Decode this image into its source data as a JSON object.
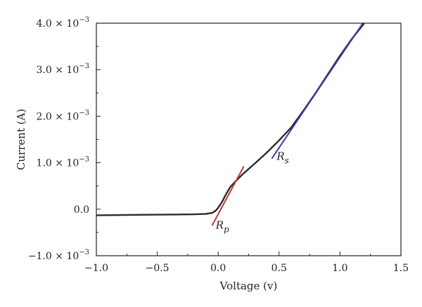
{
  "chart_data": {
    "type": "line",
    "xlabel": "Voltage (v)",
    "ylabel": "Current (A)",
    "xlim": [
      -1.0,
      1.5
    ],
    "ylim": [
      -0.001,
      0.004
    ],
    "x_ticks": [
      {
        "value": -1.0,
        "label": "−1.0"
      },
      {
        "value": -0.5,
        "label": "−0.5"
      },
      {
        "value": 0.0,
        "label": "0.0"
      },
      {
        "value": 0.5,
        "label": "0.5"
      },
      {
        "value": 1.0,
        "label": "1.0"
      },
      {
        "value": 1.5,
        "label": "1.5"
      }
    ],
    "y_ticks": [
      {
        "value": -0.001,
        "mantissa": "−1.0 × 10",
        "exponent": "−3"
      },
      {
        "value": 0.0,
        "mantissa": "0.0",
        "exponent": ""
      },
      {
        "value": 0.001,
        "mantissa": "1.0 × 10",
        "exponent": "−3"
      },
      {
        "value": 0.002,
        "mantissa": "2.0 × 10",
        "exponent": "−3"
      },
      {
        "value": 0.003,
        "mantissa": "3.0 × 10",
        "exponent": "−3"
      },
      {
        "value": 0.004,
        "mantissa": "4.0 × 10",
        "exponent": "−3"
      }
    ],
    "series": [
      {
        "color": "#2b2b2b",
        "x": [
          -1.0,
          -0.8,
          -0.6,
          -0.4,
          -0.2,
          -0.1,
          -0.05,
          -0.02,
          0.0,
          0.03,
          0.06,
          0.1,
          0.15,
          0.2,
          0.3,
          0.4,
          0.5,
          0.6,
          0.7,
          0.8,
          0.9,
          1.0,
          1.1,
          1.2
        ],
        "y": [
          -0.00013,
          -0.000125,
          -0.00012,
          -0.000115,
          -0.00011,
          -0.0001,
          -8e-05,
          -3e-05,
          3e-05,
          0.00015,
          0.0003,
          0.00048,
          0.00062,
          0.00075,
          0.00098,
          0.00122,
          0.00148,
          0.00176,
          0.00212,
          0.0025,
          0.0029,
          0.0033,
          0.00367,
          0.004
        ]
      }
    ],
    "fit_lines": [
      {
        "label": "R",
        "subscript": "p",
        "color": "#c23a3a",
        "x": [
          -0.05,
          0.21
        ],
        "y": [
          -0.00035,
          0.00092
        ],
        "label_at": [
          -0.02,
          -0.00042
        ]
      },
      {
        "label": "R",
        "subscript": "s",
        "color": "#3a3ab8",
        "x": [
          0.44,
          1.19
        ],
        "y": [
          0.00109,
          0.00401
        ],
        "label_at": [
          0.48,
          0.00106
        ]
      }
    ]
  }
}
